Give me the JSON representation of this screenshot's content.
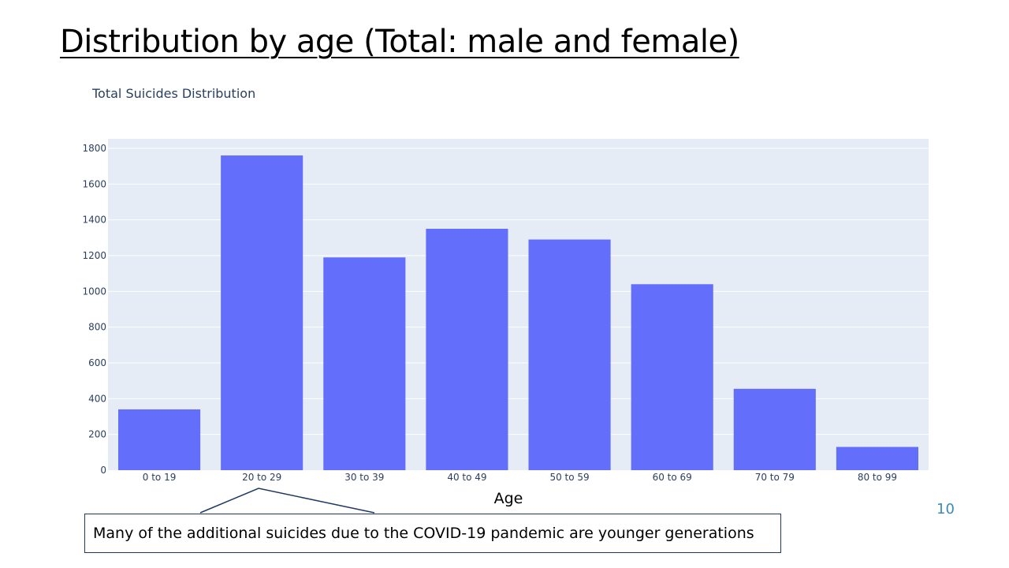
{
  "slide": {
    "title": "Distribution by age (Total: male and female)",
    "page_number": "10",
    "callout_text": "Many of the additional suicides due to the COVID-19 pandemic are younger generations"
  },
  "colors": {
    "bar": "#636efa",
    "plot_bg": "#e5ecf6",
    "grid": "#ffffff",
    "text": "#2a3f5f",
    "callout_border": "#1f3864",
    "page_number": "#3a8ab8"
  },
  "chart_data": {
    "type": "bar",
    "title": "Total Suicides Distribution",
    "xlabel": "Age",
    "ylabel": "",
    "categories": [
      "0 to 19",
      "20 to 29",
      "30 to 39",
      "40 to 49",
      "50 to 59",
      "60 to 69",
      "70 to 79",
      "80 to 99"
    ],
    "values": [
      340,
      1760,
      1190,
      1350,
      1290,
      1040,
      455,
      130
    ],
    "ylim": [
      0,
      1800
    ],
    "yticks": [
      0,
      200,
      400,
      600,
      800,
      1000,
      1200,
      1400,
      1600,
      1800
    ],
    "grid": true,
    "legend": "none",
    "annotation": {
      "points_to": "20 to 29",
      "text": "Many of the additional suicides due to the COVID-19 pandemic are younger generations"
    }
  }
}
